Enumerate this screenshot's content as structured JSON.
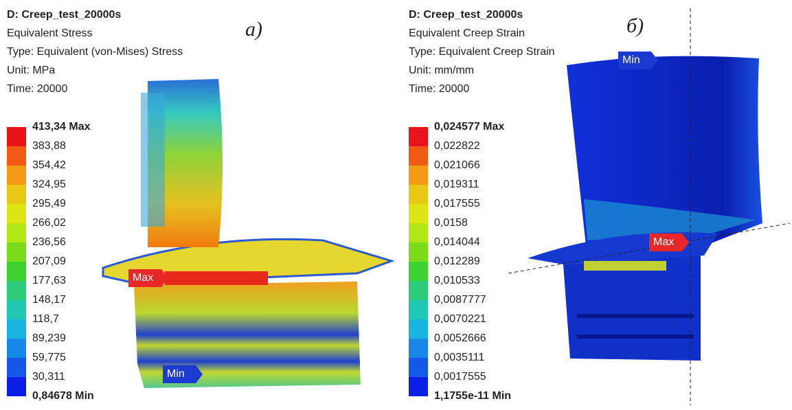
{
  "panels": [
    {
      "header": [
        "D: Creep_test_20000s",
        "Equivalent Stress",
        "Type: Equivalent (von-Mises) Stress",
        "Unit: MPa",
        "Time: 20000"
      ],
      "label": "а)",
      "legend": [
        "413,34 Max",
        "383,88",
        "354,42",
        "324,95",
        "295,49",
        "266,02",
        "236,56",
        "207,09",
        "177,63",
        "148,17",
        "118,7",
        "89,239",
        "59,775",
        "30,311",
        "0,84678 Min"
      ],
      "max_marker": "Max",
      "min_marker": "Min"
    },
    {
      "header": [
        "D: Creep_test_20000s",
        "Equivalent Creep Strain",
        "Type: Equivalent Creep Strain",
        "Unit: mm/mm",
        "Time: 20000"
      ],
      "label": "б)",
      "legend": [
        "0,024577 Max",
        "0,022822",
        "0,021066",
        "0,019311",
        "0,017555",
        "0,0158",
        "0,014044",
        "0,012289",
        "0,010533",
        "0,0087777",
        "0,0070221",
        "0,0052666",
        "0,0035111",
        "0,0017555",
        "1,1755e-11 Min"
      ],
      "max_marker": "Max",
      "min_marker": "Min"
    }
  ]
}
